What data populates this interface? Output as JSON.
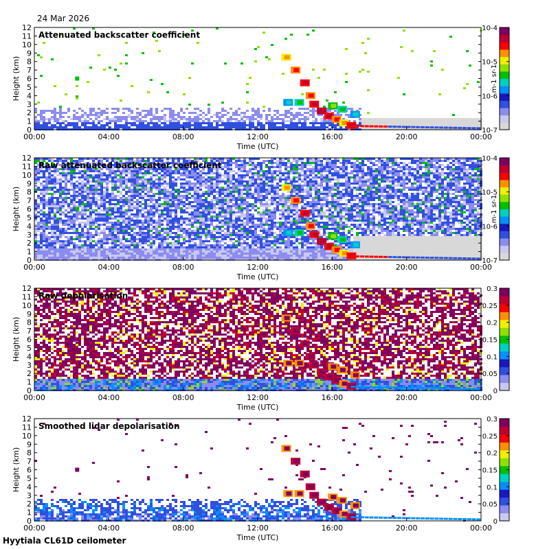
{
  "date": "24 Mar 2026",
  "footer": "Hyytiala CL61D ceilometer",
  "colors": {
    "palette": [
      "#d8d8d8",
      "#c8c8f0",
      "#8c8cf0",
      "#3050e0",
      "#1818c0",
      "#0090ff",
      "#00d0c0",
      "#00c000",
      "#90e000",
      "#f0f000",
      "#ff9000",
      "#ff0000",
      "#c00030",
      "#800060"
    ]
  },
  "chart_data": [
    {
      "type": "heatmap",
      "title": "Attenuated backscatter coefficient",
      "xlabel": "Time (UTC)",
      "ylabel": "Height (km)",
      "x_ticks": [
        "00:00",
        "04:00",
        "08:00",
        "12:00",
        "16:00",
        "20:00",
        "00:00"
      ],
      "y_ticks": [
        "0",
        "1",
        "2",
        "3",
        "4",
        "5",
        "6",
        "7",
        "8",
        "9",
        "10",
        "11",
        "12"
      ],
      "ylim": [
        0,
        12
      ],
      "colorbar": {
        "scale": "log",
        "range": [
          1e-07,
          0.0001
        ],
        "ticks": [
          "10-7",
          "10-6",
          "10-5",
          "10-4"
        ],
        "unit_label": "m-1 sr-1"
      },
      "field": {
        "noise_top_km": 2.8,
        "sparse_speckle": true,
        "noisy_background": false,
        "clear_after_hour": 17.5
      }
    },
    {
      "type": "heatmap",
      "title": "Raw attenuated backscatter coefficient",
      "xlabel": "Time (UTC)",
      "ylabel": "Height (km)",
      "x_ticks": [
        "00:00",
        "04:00",
        "08:00",
        "12:00",
        "16:00",
        "20:00",
        "00:00"
      ],
      "y_ticks": [
        "0",
        "1",
        "2",
        "3",
        "4",
        "5",
        "6",
        "7",
        "8",
        "9",
        "10",
        "11",
        "12"
      ],
      "ylim": [
        0,
        12
      ],
      "colorbar": {
        "scale": "log",
        "range": [
          1e-07,
          0.0001
        ],
        "ticks": [
          "10-7",
          "10-6",
          "10-5",
          "10-4"
        ],
        "unit_label": "m-1 sr-1"
      },
      "field": {
        "noise_top_km": 12,
        "sparse_speckle": false,
        "noisy_background": true,
        "clear_after_hour": 17.0
      }
    },
    {
      "type": "heatmap",
      "title": "Raw depolarisation",
      "xlabel": "Time (UTC)",
      "ylabel": "Height (km)",
      "x_ticks": [
        "00:00",
        "04:00",
        "08:00",
        "12:00",
        "16:00",
        "20:00",
        "00:00"
      ],
      "y_ticks": [
        "0",
        "1",
        "2",
        "3",
        "4",
        "5",
        "6",
        "7",
        "8",
        "9",
        "10",
        "11",
        "12"
      ],
      "ylim": [
        0,
        12
      ],
      "colorbar": {
        "scale": "linear",
        "range": [
          0,
          0.3
        ],
        "ticks": [
          "0",
          "0.05",
          "0.1",
          "0.15",
          "0.2",
          "0.25",
          "0.3"
        ],
        "unit_label": ""
      },
      "field": {
        "noise_top_km": 12,
        "sparse_speckle": false,
        "noisy_background": true,
        "clear_after_hour": 24
      }
    },
    {
      "type": "heatmap",
      "title": "Smoothed lidar depolarisation",
      "xlabel": "Time (UTC)",
      "ylabel": "Height (km)",
      "x_ticks": [
        "00:00",
        "04:00",
        "08:00",
        "12:00",
        "16:00",
        "20:00",
        "00:00"
      ],
      "y_ticks": [
        "0",
        "1",
        "2",
        "3",
        "4",
        "5",
        "6",
        "7",
        "8",
        "9",
        "10",
        "11",
        "12"
      ],
      "ylim": [
        0,
        12
      ],
      "colorbar": {
        "scale": "linear",
        "range": [
          0,
          0.3
        ],
        "ticks": [
          "0",
          "0.05",
          "0.1",
          "0.15",
          "0.2",
          "0.25",
          "0.3"
        ],
        "unit_label": ""
      },
      "field": {
        "noise_top_km": 2.8,
        "sparse_speckle": true,
        "noisy_background": false,
        "clear_after_hour": 24
      }
    }
  ]
}
